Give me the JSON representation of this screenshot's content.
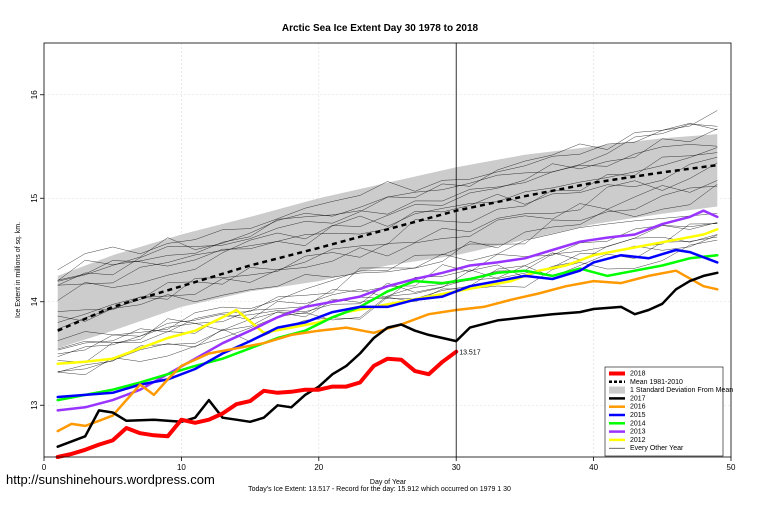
{
  "watermark": "http://sunshinehours.wordpress.com",
  "footer": "Today's Ice Extent: 13.517  - Record for the day: 15.912 which occurred on 1979 1 30",
  "chart_data": {
    "type": "line",
    "title": "Arctic Sea Ice Extent Day 30 1978 to 2018",
    "xlabel": "Day of Year",
    "ylabel": "Ice Extent in millions of sq. km.",
    "xlim": [
      0,
      50
    ],
    "ylim": [
      12.5,
      16.5
    ],
    "xticks": [
      0,
      10,
      20,
      30,
      40,
      50
    ],
    "yticks": [
      13,
      14,
      15,
      16
    ],
    "grid": true,
    "vline_x": 30,
    "legend_position": "bottom-right",
    "end_label": {
      "text": "13.517",
      "x": 30,
      "y": 13.517
    },
    "band": {
      "name": "1 Standard Deviation From Mean",
      "color": "#cccccc",
      "upper": [
        [
          1,
          14.25
        ],
        [
          5,
          14.45
        ],
        [
          10,
          14.65
        ],
        [
          15,
          14.82
        ],
        [
          20,
          15.0
        ],
        [
          25,
          15.15
        ],
        [
          30,
          15.3
        ],
        [
          35,
          15.42
        ],
        [
          40,
          15.5
        ],
        [
          45,
          15.58
        ],
        [
          49,
          15.62
        ]
      ],
      "lower": [
        [
          1,
          13.55
        ],
        [
          5,
          13.72
        ],
        [
          10,
          13.95
        ],
        [
          15,
          14.1
        ],
        [
          20,
          14.2
        ],
        [
          25,
          14.35
        ],
        [
          30,
          14.45
        ],
        [
          35,
          14.6
        ],
        [
          40,
          14.75
        ],
        [
          45,
          14.85
        ],
        [
          49,
          14.92
        ]
      ]
    },
    "mean": {
      "name": "Mean 1981-2010",
      "points": [
        [
          1,
          13.72
        ],
        [
          5,
          13.95
        ],
        [
          10,
          14.15
        ],
        [
          15,
          14.35
        ],
        [
          20,
          14.52
        ],
        [
          25,
          14.7
        ],
        [
          30,
          14.88
        ],
        [
          35,
          15.02
        ],
        [
          40,
          15.15
        ],
        [
          45,
          15.25
        ],
        [
          49,
          15.32
        ]
      ]
    },
    "series": [
      {
        "name": "2018",
        "color": "#ff0000",
        "width": 4,
        "points": [
          [
            1,
            12.5
          ],
          [
            2,
            12.53
          ],
          [
            3,
            12.57
          ],
          [
            4,
            12.62
          ],
          [
            5,
            12.66
          ],
          [
            6,
            12.78
          ],
          [
            7,
            12.73
          ],
          [
            8,
            12.71
          ],
          [
            9,
            12.7
          ],
          [
            10,
            12.86
          ],
          [
            11,
            12.83
          ],
          [
            12,
            12.86
          ],
          [
            13,
            12.92
          ],
          [
            14,
            13.01
          ],
          [
            15,
            13.04
          ],
          [
            16,
            13.14
          ],
          [
            17,
            13.12
          ],
          [
            18,
            13.13
          ],
          [
            19,
            13.15
          ],
          [
            20,
            13.15
          ],
          [
            21,
            13.18
          ],
          [
            22,
            13.18
          ],
          [
            23,
            13.22
          ],
          [
            24,
            13.38
          ],
          [
            25,
            13.45
          ],
          [
            26,
            13.44
          ],
          [
            27,
            13.33
          ],
          [
            28,
            13.3
          ],
          [
            29,
            13.42
          ],
          [
            30,
            13.517
          ]
        ]
      },
      {
        "name": "Mean 1981-2010",
        "color": "#000000",
        "dashed": true
      },
      {
        "name": "1 Standard Deviation From Mean",
        "color": "#cccccc",
        "box": true
      },
      {
        "name": "2017",
        "color": "#000000",
        "width": 2.5,
        "points": [
          [
            1,
            12.6
          ],
          [
            3,
            12.7
          ],
          [
            4,
            12.95
          ],
          [
            5,
            12.93
          ],
          [
            6,
            12.85
          ],
          [
            8,
            12.86
          ],
          [
            10,
            12.84
          ],
          [
            11,
            12.88
          ],
          [
            12,
            13.05
          ],
          [
            13,
            12.88
          ],
          [
            14,
            12.86
          ],
          [
            15,
            12.84
          ],
          [
            16,
            12.88
          ],
          [
            17,
            13.0
          ],
          [
            18,
            12.98
          ],
          [
            19,
            13.1
          ],
          [
            20,
            13.18
          ],
          [
            21,
            13.3
          ],
          [
            22,
            13.38
          ],
          [
            23,
            13.5
          ],
          [
            24,
            13.65
          ],
          [
            25,
            13.75
          ],
          [
            26,
            13.78
          ],
          [
            27,
            13.72
          ],
          [
            28,
            13.68
          ],
          [
            29,
            13.65
          ],
          [
            30,
            13.62
          ],
          [
            31,
            13.75
          ],
          [
            33,
            13.82
          ],
          [
            35,
            13.85
          ],
          [
            37,
            13.88
          ],
          [
            39,
            13.9
          ],
          [
            40,
            13.93
          ],
          [
            42,
            13.95
          ],
          [
            43,
            13.88
          ],
          [
            44,
            13.92
          ],
          [
            45,
            13.98
          ],
          [
            46,
            14.12
          ],
          [
            47,
            14.2
          ],
          [
            48,
            14.25
          ],
          [
            49,
            14.28
          ]
        ]
      },
      {
        "name": "2016",
        "color": "#ff9900",
        "width": 2.5,
        "points": [
          [
            1,
            12.75
          ],
          [
            2,
            12.82
          ],
          [
            3,
            12.8
          ],
          [
            4,
            12.85
          ],
          [
            5,
            12.9
          ],
          [
            6,
            13.05
          ],
          [
            7,
            13.2
          ],
          [
            8,
            13.1
          ],
          [
            9,
            13.25
          ],
          [
            10,
            13.38
          ],
          [
            12,
            13.5
          ],
          [
            14,
            13.55
          ],
          [
            16,
            13.6
          ],
          [
            18,
            13.68
          ],
          [
            20,
            13.72
          ],
          [
            22,
            13.75
          ],
          [
            24,
            13.7
          ],
          [
            26,
            13.78
          ],
          [
            28,
            13.88
          ],
          [
            30,
            13.92
          ],
          [
            32,
            13.95
          ],
          [
            34,
            14.02
          ],
          [
            36,
            14.08
          ],
          [
            38,
            14.15
          ],
          [
            40,
            14.2
          ],
          [
            42,
            14.18
          ],
          [
            44,
            14.25
          ],
          [
            46,
            14.3
          ],
          [
            48,
            14.15
          ],
          [
            49,
            14.12
          ]
        ]
      },
      {
        "name": "2015",
        "color": "#0000ff",
        "width": 2.5,
        "points": [
          [
            1,
            13.08
          ],
          [
            3,
            13.1
          ],
          [
            5,
            13.12
          ],
          [
            7,
            13.2
          ],
          [
            9,
            13.25
          ],
          [
            11,
            13.35
          ],
          [
            13,
            13.5
          ],
          [
            15,
            13.62
          ],
          [
            17,
            13.75
          ],
          [
            19,
            13.8
          ],
          [
            21,
            13.9
          ],
          [
            23,
            13.95
          ],
          [
            25,
            13.95
          ],
          [
            27,
            14.02
          ],
          [
            29,
            14.05
          ],
          [
            31,
            14.15
          ],
          [
            33,
            14.2
          ],
          [
            35,
            14.25
          ],
          [
            37,
            14.22
          ],
          [
            39,
            14.3
          ],
          [
            40,
            14.38
          ],
          [
            42,
            14.45
          ],
          [
            44,
            14.42
          ],
          [
            46,
            14.5
          ],
          [
            47,
            14.48
          ],
          [
            49,
            14.38
          ]
        ]
      },
      {
        "name": "2014",
        "color": "#00ff00",
        "width": 2.5,
        "points": [
          [
            1,
            13.05
          ],
          [
            3,
            13.1
          ],
          [
            5,
            13.15
          ],
          [
            7,
            13.22
          ],
          [
            9,
            13.3
          ],
          [
            11,
            13.38
          ],
          [
            13,
            13.45
          ],
          [
            15,
            13.55
          ],
          [
            17,
            13.65
          ],
          [
            19,
            13.72
          ],
          [
            21,
            13.85
          ],
          [
            23,
            13.95
          ],
          [
            25,
            14.1
          ],
          [
            27,
            14.2
          ],
          [
            29,
            14.18
          ],
          [
            31,
            14.22
          ],
          [
            33,
            14.28
          ],
          [
            35,
            14.3
          ],
          [
            37,
            14.25
          ],
          [
            39,
            14.32
          ],
          [
            41,
            14.25
          ],
          [
            43,
            14.3
          ],
          [
            45,
            14.35
          ],
          [
            47,
            14.42
          ],
          [
            49,
            14.45
          ]
        ]
      },
      {
        "name": "2013",
        "color": "#9933ff",
        "width": 2.5,
        "points": [
          [
            1,
            12.95
          ],
          [
            3,
            12.98
          ],
          [
            5,
            13.05
          ],
          [
            7,
            13.15
          ],
          [
            9,
            13.3
          ],
          [
            11,
            13.45
          ],
          [
            13,
            13.6
          ],
          [
            15,
            13.72
          ],
          [
            17,
            13.85
          ],
          [
            19,
            13.95
          ],
          [
            21,
            14.0
          ],
          [
            23,
            14.05
          ],
          [
            25,
            14.15
          ],
          [
            27,
            14.22
          ],
          [
            29,
            14.28
          ],
          [
            31,
            14.35
          ],
          [
            33,
            14.38
          ],
          [
            35,
            14.42
          ],
          [
            37,
            14.5
          ],
          [
            39,
            14.58
          ],
          [
            41,
            14.62
          ],
          [
            43,
            14.65
          ],
          [
            45,
            14.75
          ],
          [
            47,
            14.82
          ],
          [
            48,
            14.88
          ],
          [
            49,
            14.82
          ]
        ]
      },
      {
        "name": "2012",
        "color": "#ffff00",
        "width": 2.5,
        "points": [
          [
            1,
            13.4
          ],
          [
            3,
            13.42
          ],
          [
            5,
            13.45
          ],
          [
            7,
            13.55
          ],
          [
            9,
            13.65
          ],
          [
            11,
            13.72
          ],
          [
            13,
            13.85
          ],
          [
            14,
            13.92
          ],
          [
            16,
            13.7
          ],
          [
            18,
            13.75
          ],
          [
            20,
            13.8
          ],
          [
            22,
            13.9
          ],
          [
            24,
            13.95
          ],
          [
            26,
            14.0
          ],
          [
            28,
            14.05
          ],
          [
            30,
            14.1
          ],
          [
            32,
            14.15
          ],
          [
            34,
            14.2
          ],
          [
            36,
            14.3
          ],
          [
            38,
            14.35
          ],
          [
            40,
            14.45
          ],
          [
            42,
            14.5
          ],
          [
            44,
            14.55
          ],
          [
            46,
            14.6
          ],
          [
            48,
            14.65
          ],
          [
            49,
            14.7
          ]
        ]
      },
      {
        "name": "Every Other Year",
        "color": "#000000",
        "width": 0.6,
        "thin": true
      }
    ]
  }
}
